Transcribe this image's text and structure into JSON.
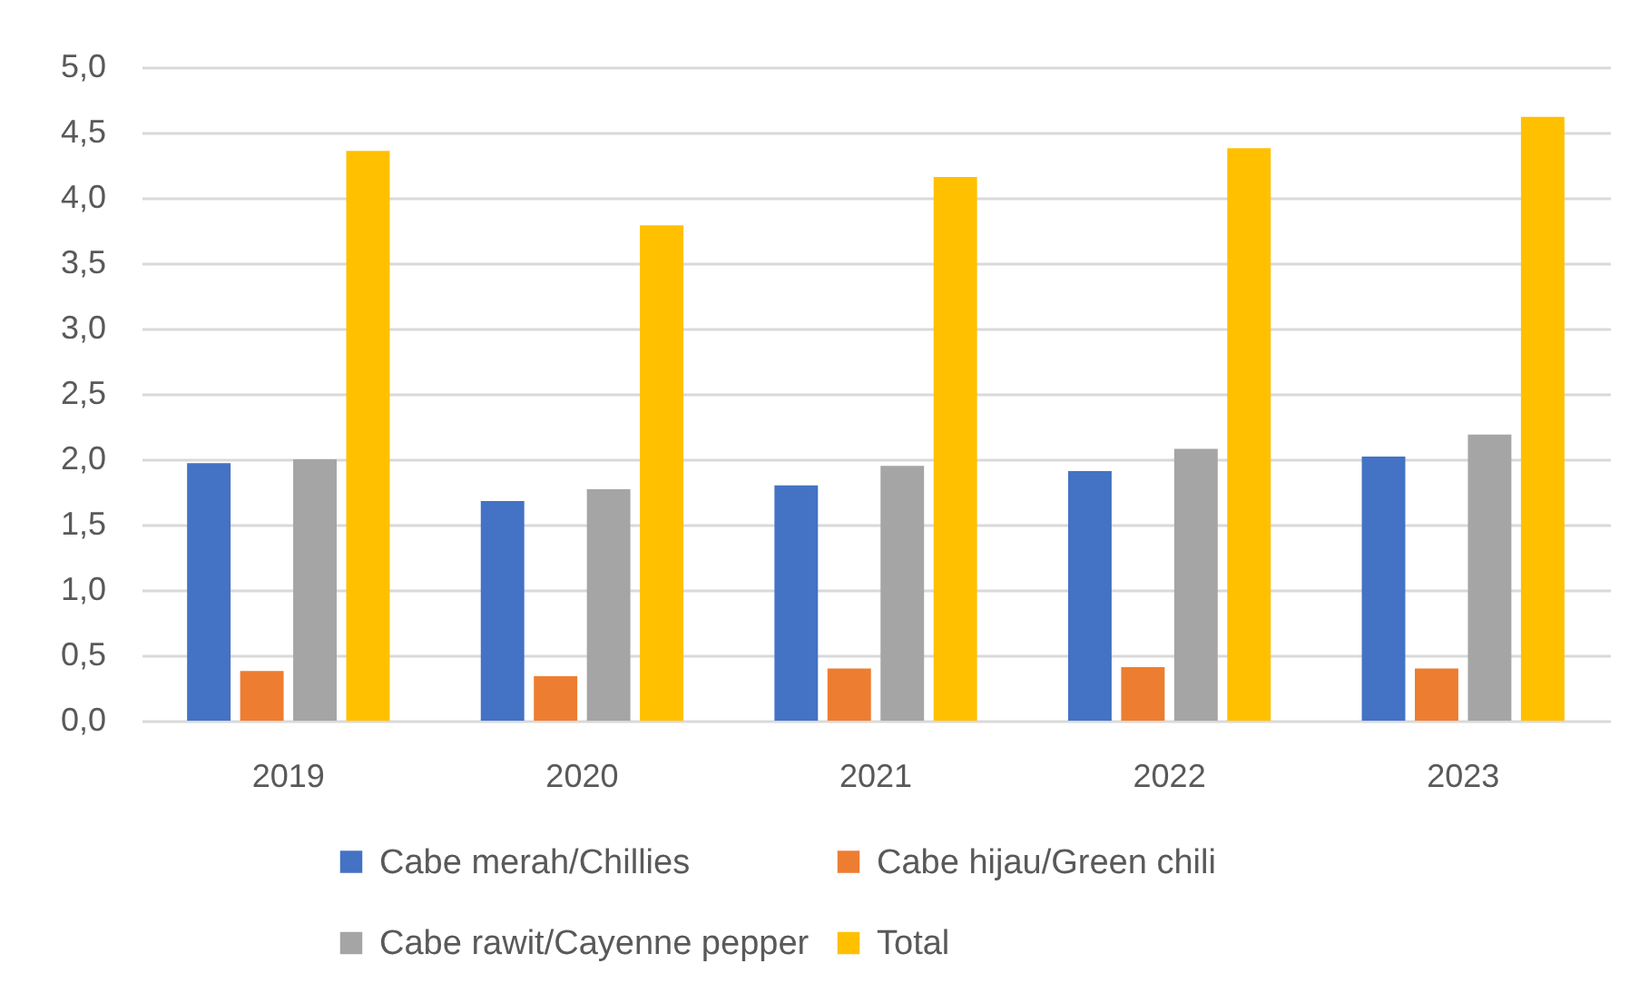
{
  "chart_data": {
    "type": "bar",
    "categories": [
      "2019",
      "2020",
      "2021",
      "2022",
      "2023"
    ],
    "series": [
      {
        "name": "Cabe merah/Chillies",
        "color": "#4472c4",
        "values": [
          1.97,
          1.68,
          1.8,
          1.91,
          2.02
        ]
      },
      {
        "name": "Cabe hijau/Green chili",
        "color": "#ed7d31",
        "values": [
          0.38,
          0.34,
          0.4,
          0.41,
          0.4
        ]
      },
      {
        "name": "Cabe rawit/Cayenne pepper",
        "color": "#a5a5a5",
        "values": [
          2.0,
          1.77,
          1.95,
          2.08,
          2.19
        ]
      },
      {
        "name": "Total",
        "color": "#ffc000",
        "values": [
          4.36,
          3.79,
          4.16,
          4.38,
          4.62
        ]
      }
    ],
    "ylim": [
      0,
      5
    ],
    "yticks": [
      {
        "value": 0,
        "label": "0,0"
      },
      {
        "value": 0.5,
        "label": "0,5"
      },
      {
        "value": 1,
        "label": "1,0"
      },
      {
        "value": 1.5,
        "label": "1,5"
      },
      {
        "value": 2,
        "label": "2,0"
      },
      {
        "value": 2.5,
        "label": "2,5"
      },
      {
        "value": 3,
        "label": "3,0"
      },
      {
        "value": 3.5,
        "label": "3,5"
      },
      {
        "value": 4,
        "label": "4,0"
      },
      {
        "value": 4.5,
        "label": "4,5"
      },
      {
        "value": 5,
        "label": "5,0"
      }
    ],
    "grid": "y",
    "legend": "bottom"
  }
}
